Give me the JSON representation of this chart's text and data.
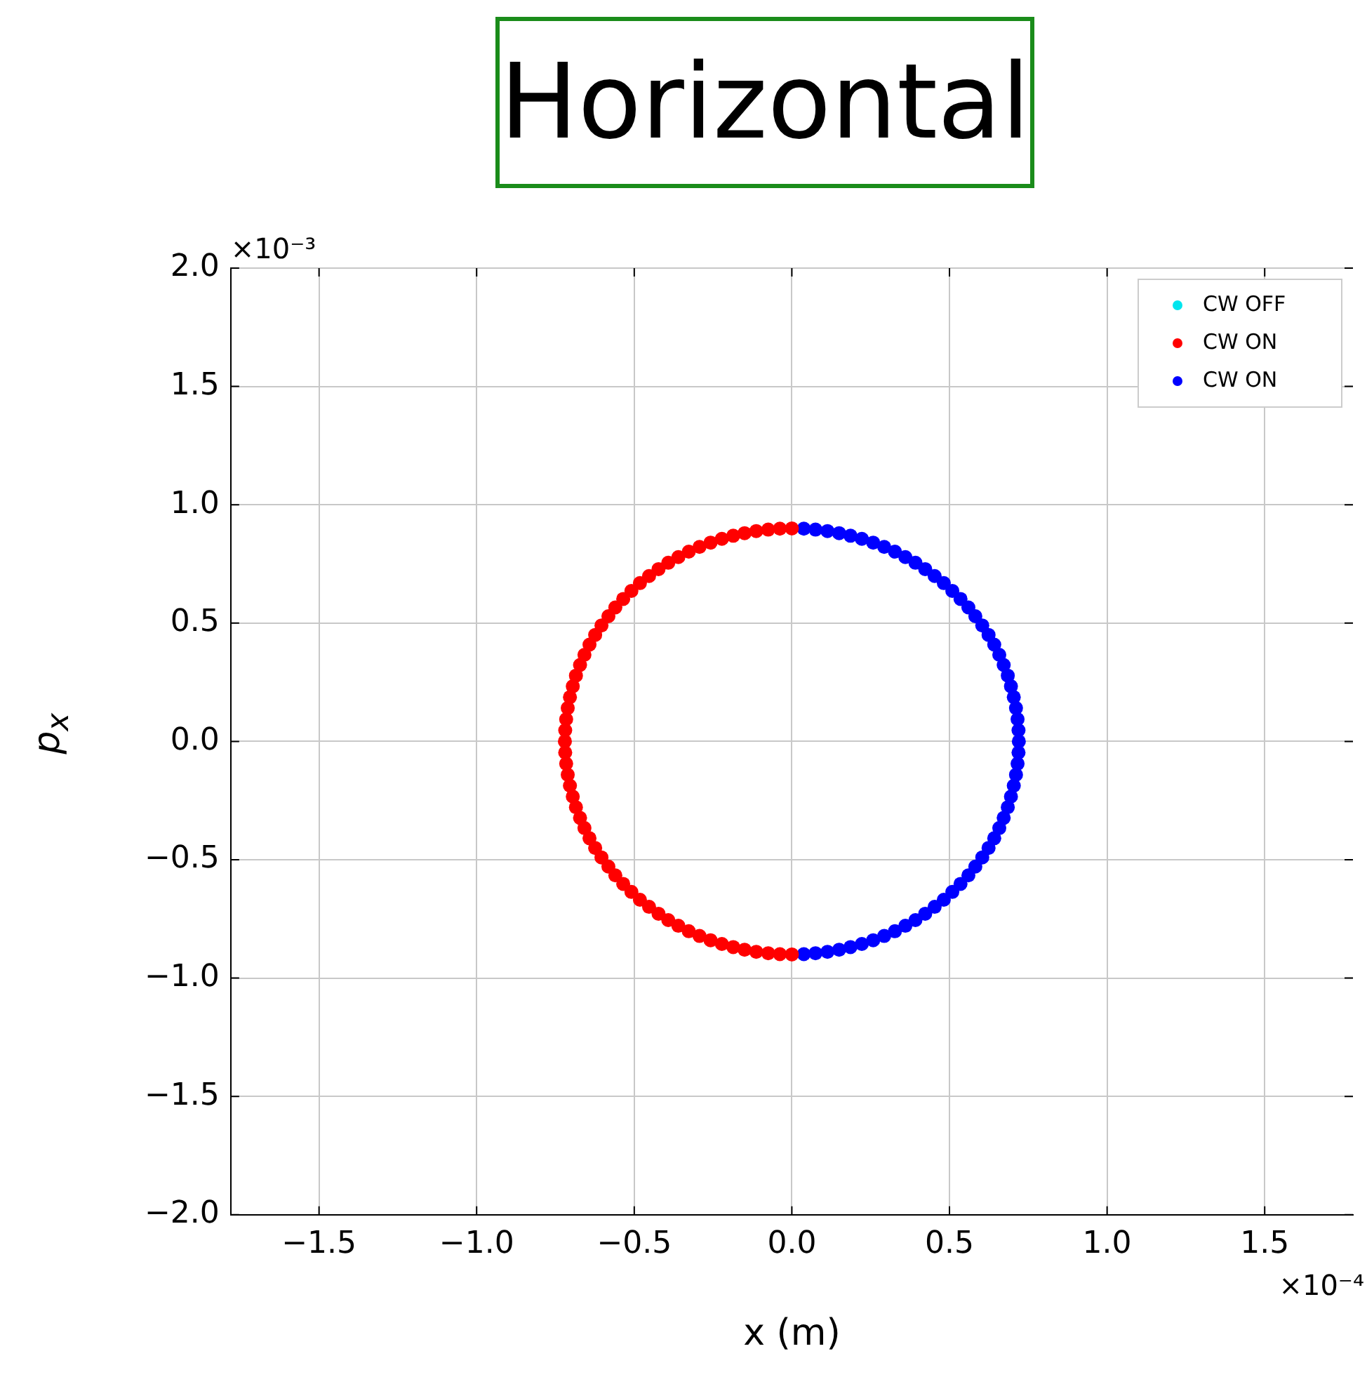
{
  "chart_data": {
    "type": "scatter",
    "title": "Horizontal",
    "xlabel": "x (m)",
    "ylabel": "p$_{x}$",
    "marker": "circle",
    "xlim": [
      -1.78,
      1.78
    ],
    "xticks": [
      -1.5,
      {
        "value": -1,
        "label": "−1.0"
      },
      -0.5,
      {
        "value": 0,
        "label": "0.0"
      },
      0.5,
      {
        "value": 1,
        "label": "1.0"
      },
      1.5
    ],
    "ylim": [
      -2.0,
      2.0
    ],
    "yticks": [
      {
        "value": -2,
        "label": "−2.0"
      },
      -1.5,
      {
        "value": -1,
        "label": "−1.0"
      },
      -0.5,
      {
        "value": 0,
        "label": "0.0"
      },
      0.5,
      {
        "value": 1,
        "label": "1.0"
      },
      1.5,
      {
        "value": 2,
        "label": "2.0"
      }
    ],
    "annotations": [
      "×10⁻³",
      "×10⁻⁴"
    ],
    "grid": true,
    "legend": "top right",
    "series": [
      {
        "name": "CW OFF",
        "color": "#00e5ee"
      },
      {
        "name": "CW ON",
        "color": "#ff0000",
        "x": [
          0,
          -0.038,
          -0.075,
          -0.113,
          -0.15,
          -0.186,
          -0.222,
          -0.258,
          -0.293,
          -0.327,
          -0.36,
          -0.392,
          -0.423,
          -0.453,
          -0.482,
          -0.509,
          -0.535,
          -0.56,
          -0.582,
          -0.604,
          -0.624,
          -0.642,
          -0.658,
          -0.672,
          -0.685,
          -0.695,
          -0.704,
          -0.711,
          -0.716,
          -0.719,
          -0.72,
          -0.719,
          -0.716,
          -0.711,
          -0.704,
          -0.695,
          -0.685,
          -0.672,
          -0.658,
          -0.642,
          -0.624,
          -0.604,
          -0.582,
          -0.56,
          -0.535,
          -0.509,
          -0.482,
          -0.453,
          -0.423,
          -0.392,
          -0.36,
          -0.327,
          -0.293,
          -0.258,
          -0.222,
          -0.186,
          -0.15,
          -0.113,
          -0.075,
          -0.038,
          0
        ],
        "values": [
          0.9,
          0.899,
          0.895,
          0.889,
          0.88,
          0.869,
          0.856,
          0.84,
          0.822,
          0.802,
          0.779,
          0.755,
          0.728,
          0.699,
          0.669,
          0.636,
          0.602,
          0.566,
          0.529,
          0.49,
          0.45,
          0.409,
          0.366,
          0.323,
          0.278,
          0.233,
          0.187,
          0.141,
          0.094,
          0.047,
          0,
          -0.047,
          -0.094,
          -0.141,
          -0.187,
          -0.233,
          -0.278,
          -0.323,
          -0.366,
          -0.409,
          -0.45,
          -0.49,
          -0.529,
          -0.566,
          -0.602,
          -0.636,
          -0.669,
          -0.699,
          -0.728,
          -0.755,
          -0.779,
          -0.802,
          -0.822,
          -0.84,
          -0.856,
          -0.869,
          -0.88,
          -0.889,
          -0.895,
          -0.899,
          -0.9
        ]
      },
      {
        "name": "CW ON",
        "color": "#0000ff",
        "x": [
          0.038,
          0.075,
          0.113,
          0.15,
          0.186,
          0.222,
          0.258,
          0.293,
          0.327,
          0.36,
          0.392,
          0.423,
          0.453,
          0.482,
          0.509,
          0.535,
          0.56,
          0.582,
          0.604,
          0.624,
          0.642,
          0.658,
          0.672,
          0.685,
          0.695,
          0.704,
          0.711,
          0.716,
          0.719,
          0.72,
          0.719,
          0.716,
          0.711,
          0.704,
          0.695,
          0.685,
          0.672,
          0.658,
          0.642,
          0.624,
          0.604,
          0.582,
          0.56,
          0.535,
          0.509,
          0.482,
          0.453,
          0.423,
          0.392,
          0.36,
          0.327,
          0.293,
          0.258,
          0.222,
          0.186,
          0.15,
          0.113,
          0.075,
          0.038
        ],
        "values": [
          0.899,
          0.895,
          0.889,
          0.88,
          0.869,
          0.856,
          0.84,
          0.822,
          0.802,
          0.779,
          0.755,
          0.728,
          0.699,
          0.669,
          0.636,
          0.602,
          0.566,
          0.529,
          0.49,
          0.45,
          0.409,
          0.366,
          0.323,
          0.278,
          0.233,
          0.187,
          0.141,
          0.094,
          0.047,
          0,
          -0.047,
          -0.094,
          -0.141,
          -0.187,
          -0.233,
          -0.278,
          -0.323,
          -0.366,
          -0.409,
          -0.45,
          -0.49,
          -0.529,
          -0.566,
          -0.602,
          -0.636,
          -0.669,
          -0.699,
          -0.728,
          -0.755,
          -0.779,
          -0.802,
          -0.822,
          -0.84,
          -0.856,
          -0.869,
          -0.88,
          -0.889,
          -0.895,
          -0.899
        ]
      }
    ]
  }
}
